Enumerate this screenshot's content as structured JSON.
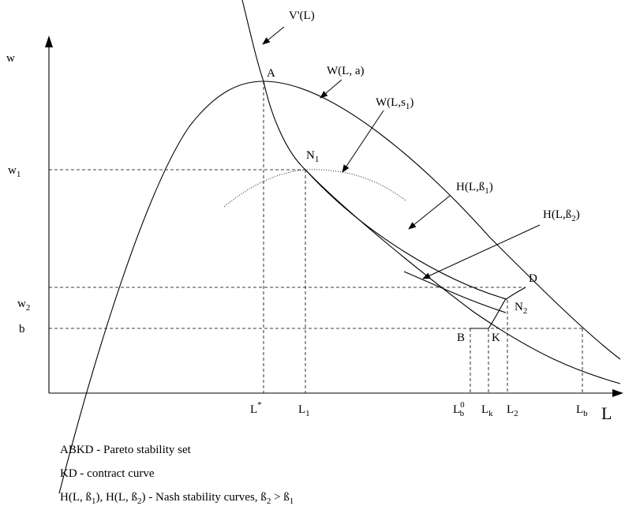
{
  "axes": {
    "y_label": "w",
    "x_label": "L"
  },
  "y_ticks": {
    "w1": {
      "main": "w",
      "sub": "1"
    },
    "w2": {
      "main": "w",
      "sub": "2"
    },
    "b": {
      "main": "b"
    }
  },
  "x_ticks": {
    "l_star": {
      "main": "L",
      "sup": "*"
    },
    "l1": {
      "main": "L",
      "sub": "1"
    },
    "l0b": {
      "main": "L",
      "sup": "0",
      "sub": "b"
    },
    "lk": {
      "main": "L",
      "sub": "k"
    },
    "l2": {
      "main": "L",
      "sub": "2"
    },
    "lb": {
      "main": "L",
      "sub": "b"
    }
  },
  "points": {
    "A": "A",
    "N1": {
      "main": "N",
      "sub": "1"
    },
    "N2": {
      "main": "N",
      "sub": "2"
    },
    "D": "D",
    "B": "B",
    "K": "K"
  },
  "curve_labels": {
    "vprime": "V'(L)",
    "w_la": "W(L, a)",
    "w_ls1": {
      "main": "W(L,s",
      "sub": "1",
      "tail": ")"
    },
    "h_b1": {
      "main": "H(L,ß",
      "sub": "1",
      "tail": ")"
    },
    "h_b2": {
      "main": "H(L,ß",
      "sub": "2",
      "tail": ")"
    }
  },
  "legend": {
    "line1": "ABKD - Pareto stability set",
    "line2": "KD - contract curve",
    "line3": {
      "p1": "H(L, ß",
      "s1": "1",
      "p2": "), H(L, ß",
      "s2": "2",
      "p3": ") - Nash stability curves, ß",
      "s3": "2",
      "p4": " > ß",
      "s4": "1"
    }
  }
}
